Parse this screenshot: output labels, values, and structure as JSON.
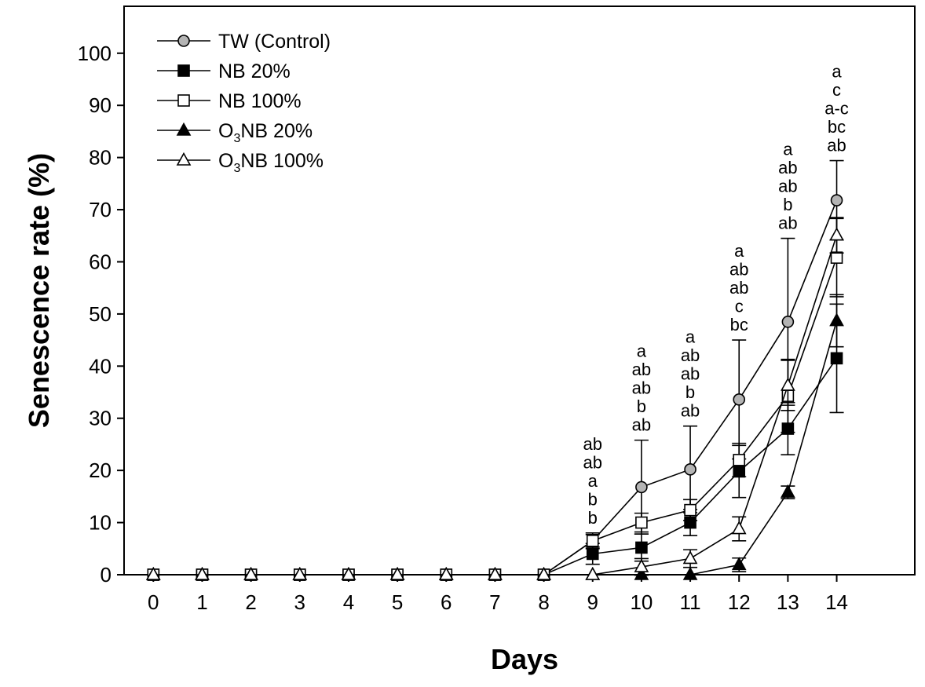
{
  "chart_data": {
    "type": "line",
    "title": "",
    "xlabel": "Days",
    "ylabel": "Senescence rate (%)",
    "xlim": [
      -0.6,
      15.6
    ],
    "ylim": [
      0,
      109
    ],
    "grid": false,
    "legend_position": "top-left",
    "x_ticks": [
      0,
      1,
      2,
      3,
      4,
      5,
      6,
      7,
      8,
      9,
      10,
      11,
      12,
      13,
      14
    ],
    "x_tick_labels": [
      "0",
      "1",
      "2",
      "3",
      "4",
      "5",
      "6",
      "7",
      "8",
      "9",
      "10",
      "11",
      "12",
      "13",
      "14"
    ],
    "y_ticks": [
      0,
      10,
      20,
      30,
      40,
      50,
      60,
      70,
      80,
      90,
      100
    ],
    "y_tick_labels": [
      "0",
      "10",
      "20",
      "30",
      "40",
      "50",
      "60",
      "70",
      "80",
      "90",
      "100"
    ],
    "x": [
      0,
      1,
      2,
      3,
      4,
      5,
      6,
      7,
      8,
      9,
      10,
      11,
      12,
      13,
      14
    ],
    "series": [
      {
        "name": "TW (Control)",
        "label_main": "TW (Control)",
        "label_sub": "",
        "label_rest": "",
        "marker": "circle",
        "fill": "#b4b4b4",
        "values": [
          0,
          0,
          0,
          0,
          0,
          0,
          0,
          0,
          0,
          6.5,
          16.8,
          20.2,
          33.6,
          48.5,
          71.8
        ],
        "errors": [
          0,
          0,
          0,
          0,
          0,
          0,
          0,
          0,
          0,
          1.5,
          9,
          8.3,
          11.4,
          16,
          7.6
        ]
      },
      {
        "name": "NB 20%",
        "label_main": "NB 20%",
        "label_sub": "",
        "label_rest": "",
        "marker": "square",
        "fill": "#000000",
        "values": [
          0,
          0,
          0,
          0,
          0,
          0,
          0,
          0,
          0,
          4,
          5.2,
          10,
          19.8,
          28,
          41.5
        ],
        "errors": [
          0,
          0,
          0,
          0,
          0,
          0,
          0,
          0,
          0,
          2,
          2.6,
          2.5,
          5,
          5,
          10.4
        ]
      },
      {
        "name": "NB 100%",
        "label_main": "NB 100%",
        "label_sub": "",
        "label_rest": "",
        "marker": "square",
        "fill": "#ffffff",
        "values": [
          0,
          0,
          0,
          0,
          0,
          0,
          0,
          0,
          0,
          6.5,
          10,
          12.4,
          22,
          34.3,
          60.8
        ],
        "errors": [
          0,
          0,
          0,
          0,
          0,
          0,
          0,
          0,
          0,
          1.2,
          1.8,
          2,
          3.2,
          7,
          7.5
        ]
      },
      {
        "name": "O3NB 20%",
        "label_main": "O",
        "label_sub": "3",
        "label_rest": "NB 20%",
        "marker": "triangle",
        "fill": "#000000",
        "values": [
          0,
          0,
          0,
          0,
          0,
          0,
          0,
          0,
          0,
          0,
          0,
          0,
          1.9,
          15.8,
          48.7
        ],
        "errors": [
          0,
          0,
          0,
          0,
          0,
          0,
          0,
          0,
          0,
          0,
          0,
          0,
          1.3,
          1.2,
          5
        ]
      },
      {
        "name": "O3NB 100%",
        "label_main": "O",
        "label_sub": "3",
        "label_rest": "NB 100%",
        "marker": "triangle",
        "fill": "#ffffff",
        "values": [
          0,
          0,
          0,
          0,
          0,
          0,
          0,
          0,
          0,
          0,
          1.5,
          3.1,
          8.8,
          36.3,
          65.1
        ],
        "errors": [
          0,
          0,
          0,
          0,
          0,
          0,
          0,
          0,
          0,
          0,
          1.6,
          1.7,
          2.3,
          4.8,
          3.4
        ]
      }
    ],
    "significance_labels": [
      {
        "x": 9,
        "letters": [
          "ab",
          "ab",
          "a",
          "b",
          "b"
        ]
      },
      {
        "x": 10,
        "letters": [
          "a",
          "ab",
          "ab",
          "b",
          "ab"
        ]
      },
      {
        "x": 11,
        "letters": [
          "a",
          "ab",
          "ab",
          "b",
          "ab"
        ]
      },
      {
        "x": 12,
        "letters": [
          "a",
          "ab",
          "ab",
          "c",
          "bc"
        ]
      },
      {
        "x": 13,
        "letters": [
          "a",
          "ab",
          "ab",
          "b",
          "ab"
        ]
      },
      {
        "x": 14,
        "letters": [
          "a",
          "c",
          "a-c",
          "bc",
          "ab"
        ]
      }
    ]
  }
}
